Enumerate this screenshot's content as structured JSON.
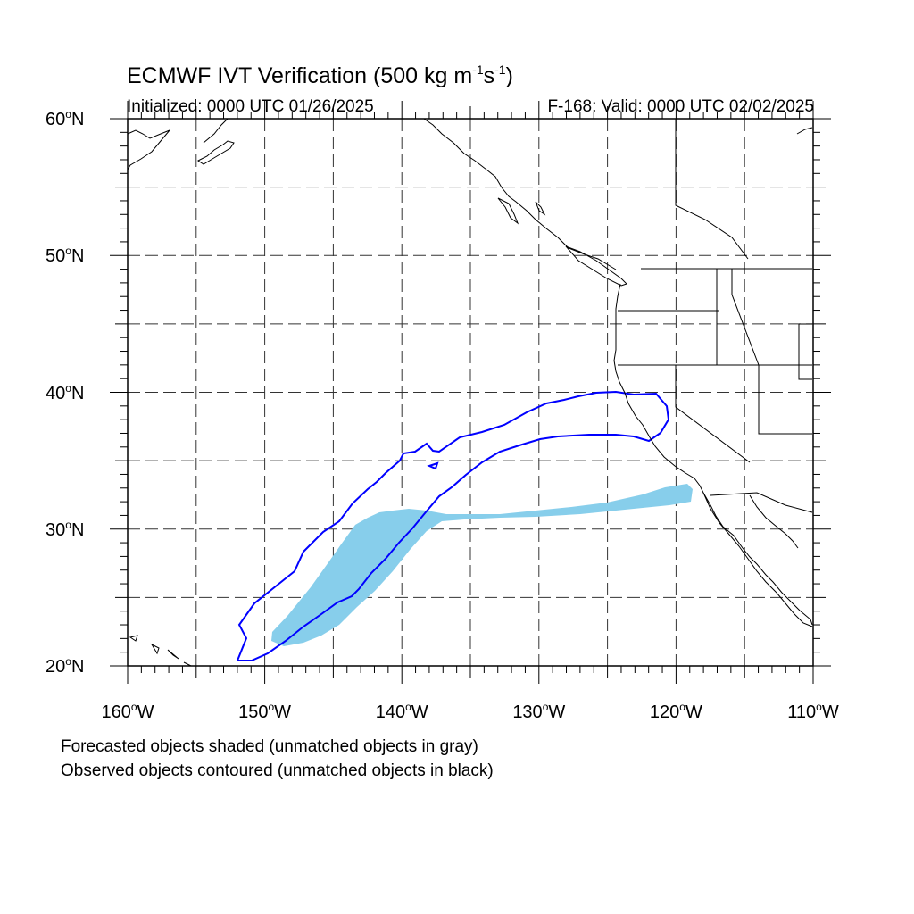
{
  "title_main": "ECMWF IVT Verification (500 kg m",
  "title_exp1": "-1",
  "title_mid": "s",
  "title_exp2": "-1",
  "title_end": ")",
  "initialized": "Initialized: 0000 UTC 01/26/2025",
  "valid": "F-168: Valid: 0000 UTC 02/02/2025",
  "degree_symbol": "o",
  "lat_labels": [
    {
      "value": "60",
      "hemi": "N"
    },
    {
      "value": "50",
      "hemi": "N"
    },
    {
      "value": "40",
      "hemi": "N"
    },
    {
      "value": "30",
      "hemi": "N"
    },
    {
      "value": "20",
      "hemi": "N"
    }
  ],
  "lon_labels": [
    {
      "value": "160",
      "hemi": "W"
    },
    {
      "value": "150",
      "hemi": "W"
    },
    {
      "value": "140",
      "hemi": "W"
    },
    {
      "value": "130",
      "hemi": "W"
    },
    {
      "value": "120",
      "hemi": "W"
    },
    {
      "value": "110",
      "hemi": "W"
    }
  ],
  "footnotes": [
    "Forecasted objects shaded (unmatched objects in gray)",
    "Observed objects contoured (unmatched objects in black)"
  ],
  "map": {
    "lon_range": [
      -160,
      -110
    ],
    "lat_range": [
      20,
      60
    ],
    "grid_spacing_deg": 5,
    "grid_style": "dashed",
    "forecast_fill_color": "#87ceeb",
    "observed_contour_color": "#0000ff",
    "coastline_color": "#000000"
  }
}
